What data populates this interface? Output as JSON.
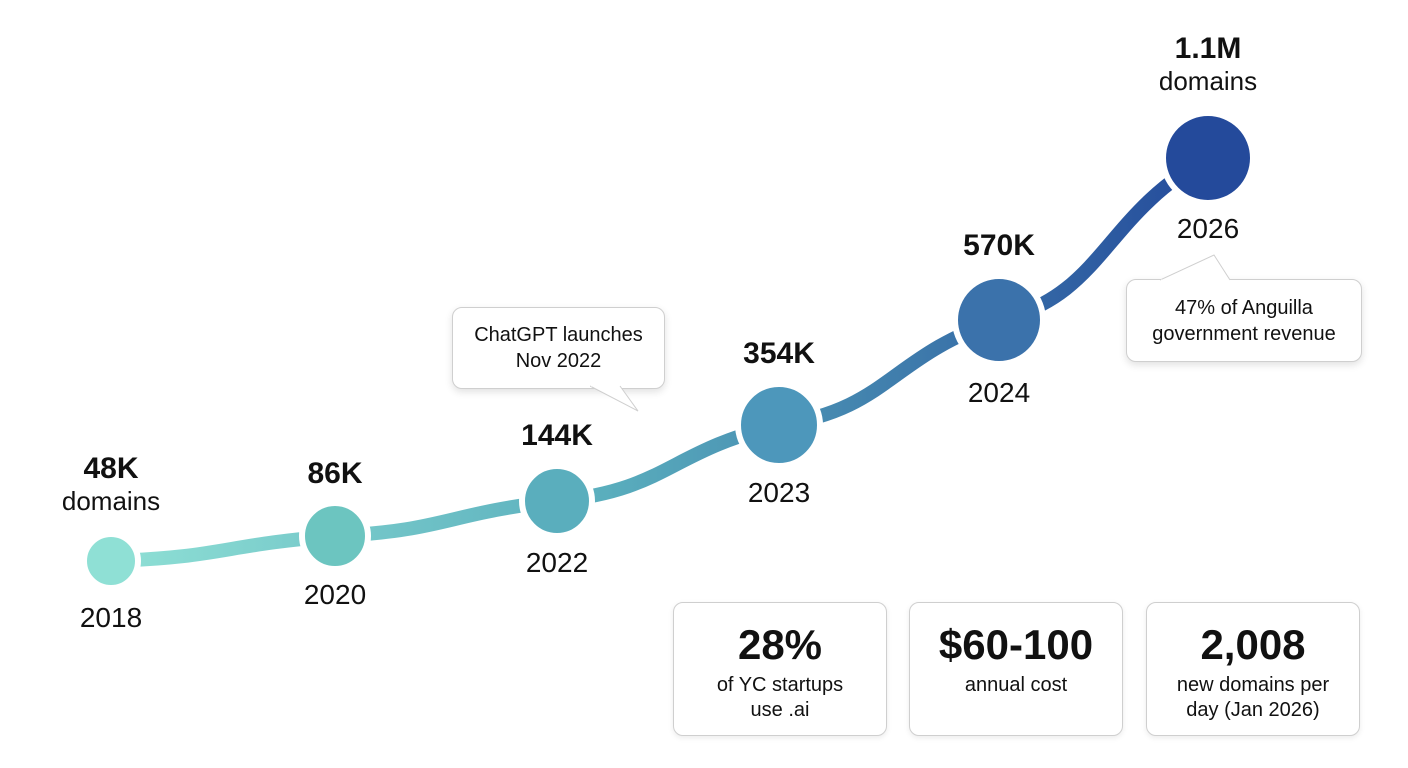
{
  "chart_data": {
    "type": "line",
    "title": "",
    "x": [
      "2018",
      "2020",
      "2022",
      "2023",
      "2024",
      "2026"
    ],
    "values": [
      48000,
      86000,
      144000,
      354000,
      570000,
      1100000
    ],
    "value_labels": [
      "48K",
      "86K",
      "144K",
      "354K",
      "570K",
      "1.1M"
    ],
    "unit_label": "domains",
    "colors": [
      "#8fe0d5",
      "#6cc5c0",
      "#5aaebd",
      "#4d97bb",
      "#3b72ab",
      "#244a9b"
    ],
    "annotations": [
      {
        "lines": [
          "ChatGPT launches",
          "Nov 2022"
        ]
      },
      {
        "lines": [
          "47% of Anguilla",
          "government revenue"
        ]
      }
    ]
  },
  "stats": [
    {
      "value": "28%",
      "desc": [
        "of YC startups",
        "use .ai"
      ]
    },
    {
      "value": "$60-100",
      "desc": [
        "annual cost"
      ]
    },
    {
      "value": "2,008",
      "desc": [
        "new domains per",
        "day (Jan 2026)"
      ]
    }
  ]
}
